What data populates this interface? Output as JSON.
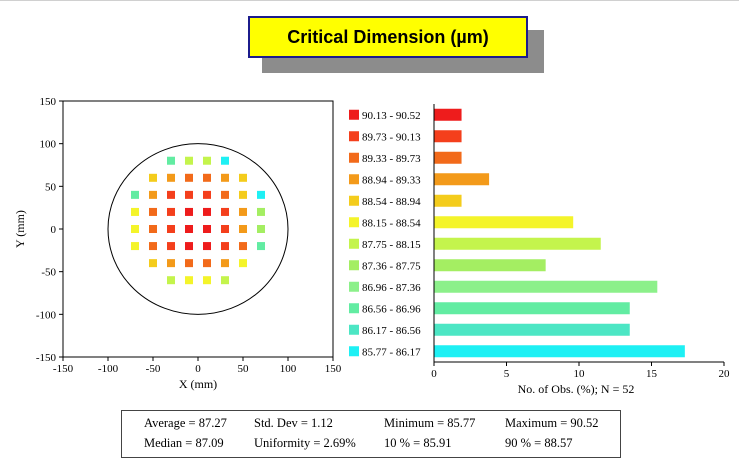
{
  "title": "Critical Dimension (µm)",
  "chart_data": [
    {
      "type": "scatter",
      "name": "wafer-map",
      "xlabel": "X (mm)",
      "ylabel": "Y (mm)",
      "xlim": [
        -150,
        150
      ],
      "ylim": [
        -150,
        150
      ],
      "xticks": [
        -150,
        -100,
        -50,
        0,
        50,
        100,
        150
      ],
      "yticks": [
        -150,
        -100,
        -50,
        0,
        50,
        100,
        150
      ],
      "wafer_radius": 100,
      "sites": [
        {
          "x": -30,
          "y": 80,
          "bin": 9
        },
        {
          "x": -10,
          "y": 80,
          "bin": 6
        },
        {
          "x": 10,
          "y": 80,
          "bin": 6
        },
        {
          "x": 30,
          "y": 80,
          "bin": 11
        },
        {
          "x": -50,
          "y": 60,
          "bin": 4
        },
        {
          "x": -30,
          "y": 60,
          "bin": 3
        },
        {
          "x": -10,
          "y": 60,
          "bin": 2
        },
        {
          "x": 10,
          "y": 60,
          "bin": 2
        },
        {
          "x": 30,
          "y": 60,
          "bin": 3
        },
        {
          "x": 50,
          "y": 60,
          "bin": 4
        },
        {
          "x": -70,
          "y": 40,
          "bin": 9
        },
        {
          "x": -50,
          "y": 40,
          "bin": 3
        },
        {
          "x": -30,
          "y": 40,
          "bin": 1
        },
        {
          "x": -10,
          "y": 40,
          "bin": 1
        },
        {
          "x": 10,
          "y": 40,
          "bin": 1
        },
        {
          "x": 30,
          "y": 40,
          "bin": 2
        },
        {
          "x": 50,
          "y": 40,
          "bin": 4
        },
        {
          "x": 70,
          "y": 40,
          "bin": 11
        },
        {
          "x": -70,
          "y": 20,
          "bin": 5
        },
        {
          "x": -50,
          "y": 20,
          "bin": 2
        },
        {
          "x": -30,
          "y": 20,
          "bin": 1
        },
        {
          "x": -10,
          "y": 20,
          "bin": 0
        },
        {
          "x": 10,
          "y": 20,
          "bin": 0
        },
        {
          "x": 30,
          "y": 20,
          "bin": 1
        },
        {
          "x": 50,
          "y": 20,
          "bin": 3
        },
        {
          "x": 70,
          "y": 20,
          "bin": 7
        },
        {
          "x": -70,
          "y": 0,
          "bin": 5
        },
        {
          "x": -50,
          "y": 0,
          "bin": 2
        },
        {
          "x": -30,
          "y": 0,
          "bin": 1
        },
        {
          "x": -10,
          "y": 0,
          "bin": 0
        },
        {
          "x": 10,
          "y": 0,
          "bin": 0
        },
        {
          "x": 30,
          "y": 0,
          "bin": 1
        },
        {
          "x": 50,
          "y": 0,
          "bin": 3
        },
        {
          "x": 70,
          "y": 0,
          "bin": 7
        },
        {
          "x": -70,
          "y": -20,
          "bin": 5
        },
        {
          "x": -50,
          "y": -20,
          "bin": 2
        },
        {
          "x": -30,
          "y": -20,
          "bin": 1
        },
        {
          "x": -10,
          "y": -20,
          "bin": 0
        },
        {
          "x": 10,
          "y": -20,
          "bin": 0
        },
        {
          "x": 30,
          "y": -20,
          "bin": 1
        },
        {
          "x": 50,
          "y": -20,
          "bin": 2
        },
        {
          "x": 70,
          "y": -20,
          "bin": 9
        },
        {
          "x": -50,
          "y": -40,
          "bin": 4
        },
        {
          "x": -30,
          "y": -40,
          "bin": 3
        },
        {
          "x": -10,
          "y": -40,
          "bin": 2
        },
        {
          "x": 10,
          "y": -40,
          "bin": 2
        },
        {
          "x": 30,
          "y": -40,
          "bin": 3
        },
        {
          "x": 50,
          "y": -40,
          "bin": 5
        },
        {
          "x": -30,
          "y": -60,
          "bin": 6
        },
        {
          "x": -10,
          "y": -60,
          "bin": 5
        },
        {
          "x": 10,
          "y": -60,
          "bin": 5
        },
        {
          "x": 30,
          "y": -60,
          "bin": 6
        }
      ]
    },
    {
      "type": "bar",
      "orientation": "horizontal",
      "name": "histogram",
      "xlabel": "No. of Obs. (%);  N = 52",
      "xlim": [
        0,
        20
      ],
      "xticks": [
        0,
        5,
        10,
        15,
        20
      ],
      "categories": [
        "90.13 - 90.52",
        "89.73 - 90.13",
        "89.33 - 89.73",
        "88.94 - 89.33",
        "88.54 - 88.94",
        "88.15 - 88.54",
        "87.75 - 88.15",
        "87.36 - 87.75",
        "86.96 - 87.36",
        "86.56 - 86.96",
        "86.17 - 86.56",
        "85.77 - 86.17"
      ],
      "values": [
        1.9,
        1.9,
        1.9,
        3.8,
        1.9,
        9.6,
        11.5,
        7.7,
        15.4,
        13.5,
        13.5,
        17.3
      ],
      "colors": [
        "#ee1c1c",
        "#f43f1c",
        "#f26a1a",
        "#f39a1a",
        "#f4cc1c",
        "#f4f42a",
        "#c4f44c",
        "#a4ee62",
        "#8cf08a",
        "#62eca2",
        "#4ce6c4",
        "#1ef0f4"
      ]
    }
  ],
  "stats": {
    "average": "Average = 87.27",
    "std_dev": "Std. Dev = 1.12",
    "minimum": "Minimum = 85.77",
    "maximum": "Maximum = 90.52",
    "median": "Median = 87.09",
    "uniformity": "Uniformity = 2.69%",
    "p10": "10 % = 85.91",
    "p90": "90 % = 88.57"
  }
}
